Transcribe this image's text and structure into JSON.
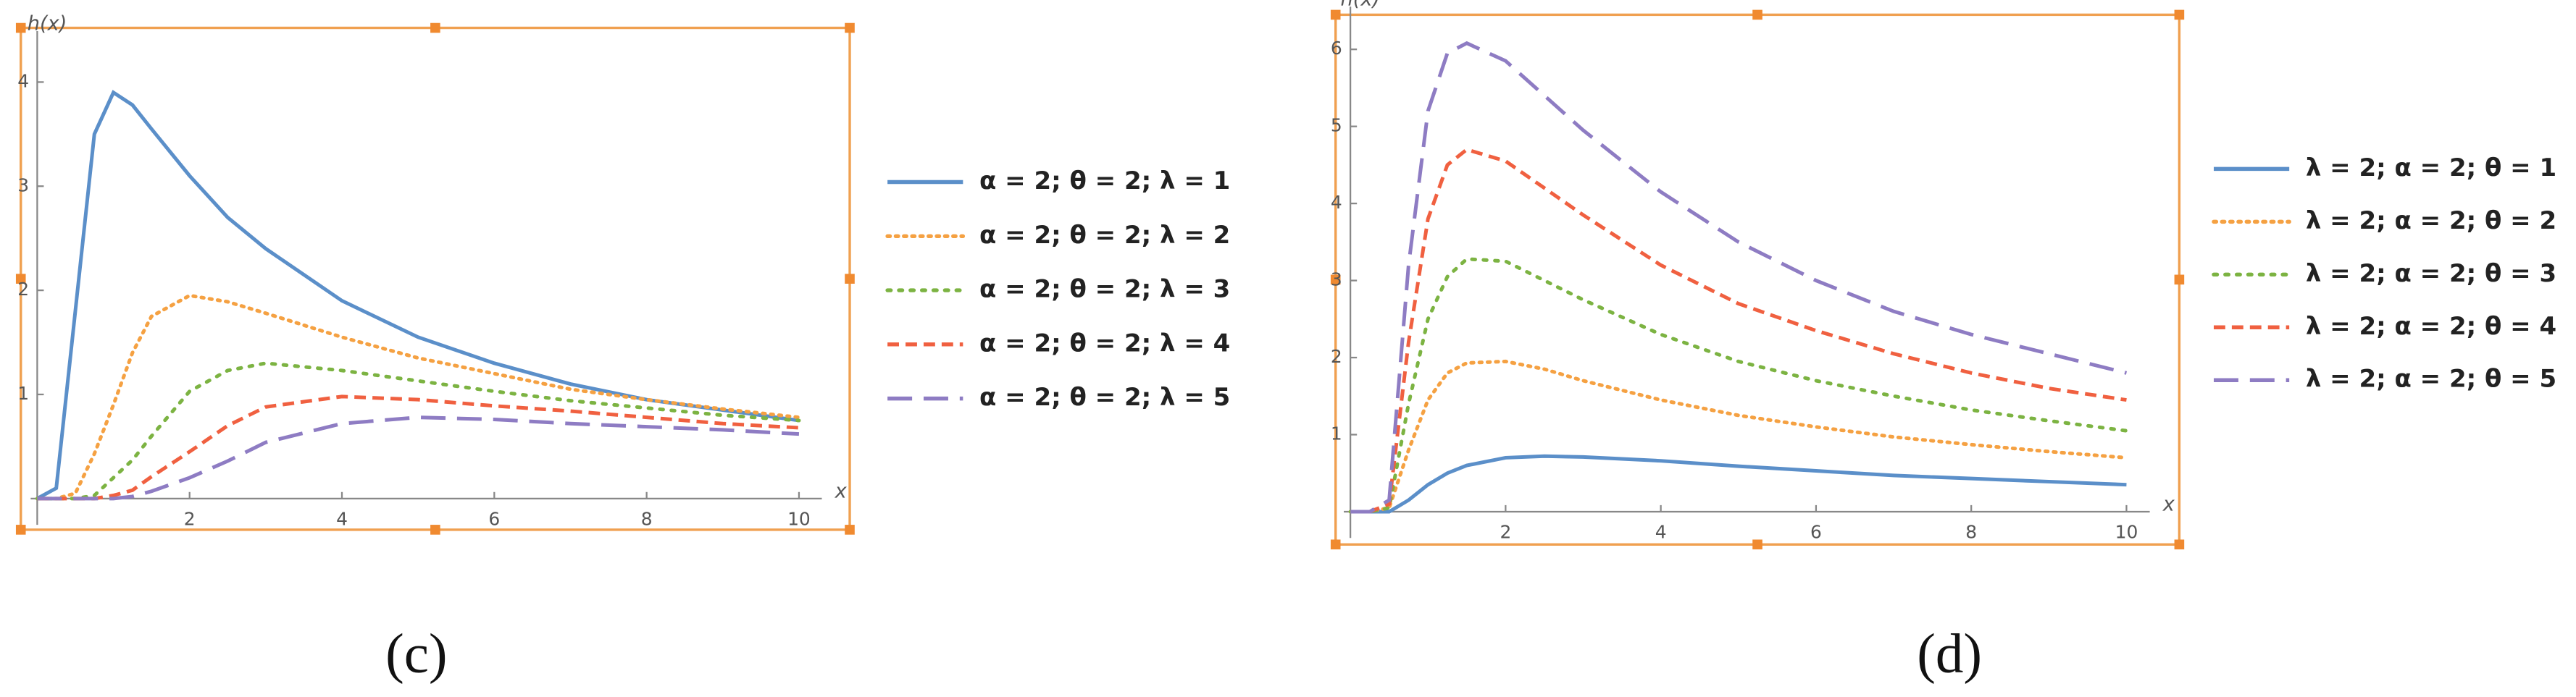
{
  "chart_data": [
    {
      "type": "line",
      "y_label": "h(x)",
      "x_label": "x",
      "panel_label": "(c)",
      "x": [
        0,
        0.25,
        0.5,
        0.75,
        1,
        1.25,
        1.5,
        2,
        2.5,
        3,
        4,
        5,
        6,
        7,
        8,
        9,
        10
      ],
      "xlim": [
        0,
        10.3
      ],
      "ylim": [
        0,
        4.3
      ],
      "xticks": [
        2,
        4,
        6,
        8,
        10
      ],
      "yticks": [
        1,
        2,
        3,
        4
      ],
      "series": [
        {
          "name": "α = 2; θ = 2; λ = 1",
          "color": "#5b8fc9",
          "values": [
            0,
            0.1,
            1.8,
            3.5,
            3.9,
            3.78,
            3.55,
            3.1,
            2.7,
            2.4,
            1.9,
            1.55,
            1.3,
            1.1,
            0.95,
            0.85,
            0.75
          ]
        },
        {
          "name": "α = 2; θ = 2; λ = 2",
          "color": "#f5a142",
          "values": [
            0,
            0,
            0.05,
            0.43,
            0.9,
            1.4,
            1.75,
            1.95,
            1.89,
            1.78,
            1.55,
            1.35,
            1.2,
            1.05,
            0.95,
            0.86,
            0.78
          ]
        },
        {
          "name": "α = 2; θ = 2; λ = 3",
          "color": "#7cb342",
          "values": [
            0,
            0,
            0,
            0.03,
            0.2,
            0.37,
            0.6,
            1.03,
            1.23,
            1.3,
            1.23,
            1.13,
            1.03,
            0.94,
            0.87,
            0.8,
            0.75
          ]
        },
        {
          "name": "α = 2; θ = 2; λ = 4",
          "color": "#f06040",
          "values": [
            0,
            0,
            0,
            0,
            0.03,
            0.08,
            0.21,
            0.45,
            0.7,
            0.88,
            0.98,
            0.95,
            0.89,
            0.84,
            0.78,
            0.72,
            0.68
          ]
        },
        {
          "name": "α = 2; θ = 2; λ = 5",
          "color": "#8e7cc3",
          "values": [
            0,
            0,
            0,
            0,
            0,
            0.02,
            0.07,
            0.2,
            0.36,
            0.54,
            0.72,
            0.78,
            0.76,
            0.72,
            0.69,
            0.66,
            0.62
          ]
        }
      ]
    },
    {
      "type": "line",
      "y_label": "h(x)",
      "x_label": "x",
      "panel_label": "(d)",
      "x": [
        0,
        0.25,
        0.5,
        0.75,
        1,
        1.25,
        1.5,
        2,
        2.5,
        3,
        4,
        5,
        6,
        7,
        8,
        9,
        10
      ],
      "xlim": [
        0,
        10.3
      ],
      "ylim": [
        0,
        6.3
      ],
      "xticks": [
        2,
        4,
        6,
        8,
        10
      ],
      "yticks": [
        1,
        2,
        3,
        4,
        5,
        6
      ],
      "series": [
        {
          "name": "λ = 2; α = 2; θ = 1",
          "color": "#5b8fc9",
          "values": [
            0,
            0,
            0,
            0.15,
            0.35,
            0.5,
            0.6,
            0.7,
            0.72,
            0.71,
            0.66,
            0.59,
            0.53,
            0.47,
            0.43,
            0.39,
            0.35
          ]
        },
        {
          "name": "λ = 2; α = 2; θ = 2",
          "color": "#f5a142",
          "values": [
            0,
            0,
            0.05,
            0.8,
            1.45,
            1.8,
            1.93,
            1.95,
            1.85,
            1.7,
            1.45,
            1.25,
            1.1,
            0.97,
            0.87,
            0.78,
            0.7
          ]
        },
        {
          "name": "λ = 2; α = 2; θ = 3",
          "color": "#7cb342",
          "values": [
            0,
            0,
            0.05,
            1.4,
            2.5,
            3.05,
            3.28,
            3.25,
            3.0,
            2.75,
            2.3,
            1.95,
            1.7,
            1.5,
            1.32,
            1.18,
            1.05
          ]
        },
        {
          "name": "λ = 2; α = 2; θ = 4",
          "color": "#f06040",
          "values": [
            0,
            0,
            0.1,
            2.2,
            3.8,
            4.5,
            4.7,
            4.55,
            4.2,
            3.85,
            3.2,
            2.7,
            2.35,
            2.05,
            1.8,
            1.6,
            1.45
          ]
        },
        {
          "name": "λ = 2; α = 2; θ = 5",
          "color": "#8e7cc3",
          "values": [
            0,
            0,
            0.15,
            3.2,
            5.2,
            5.95,
            6.08,
            5.85,
            5.4,
            4.95,
            4.15,
            3.5,
            3.0,
            2.6,
            2.3,
            2.05,
            1.8
          ]
        }
      ]
    }
  ]
}
